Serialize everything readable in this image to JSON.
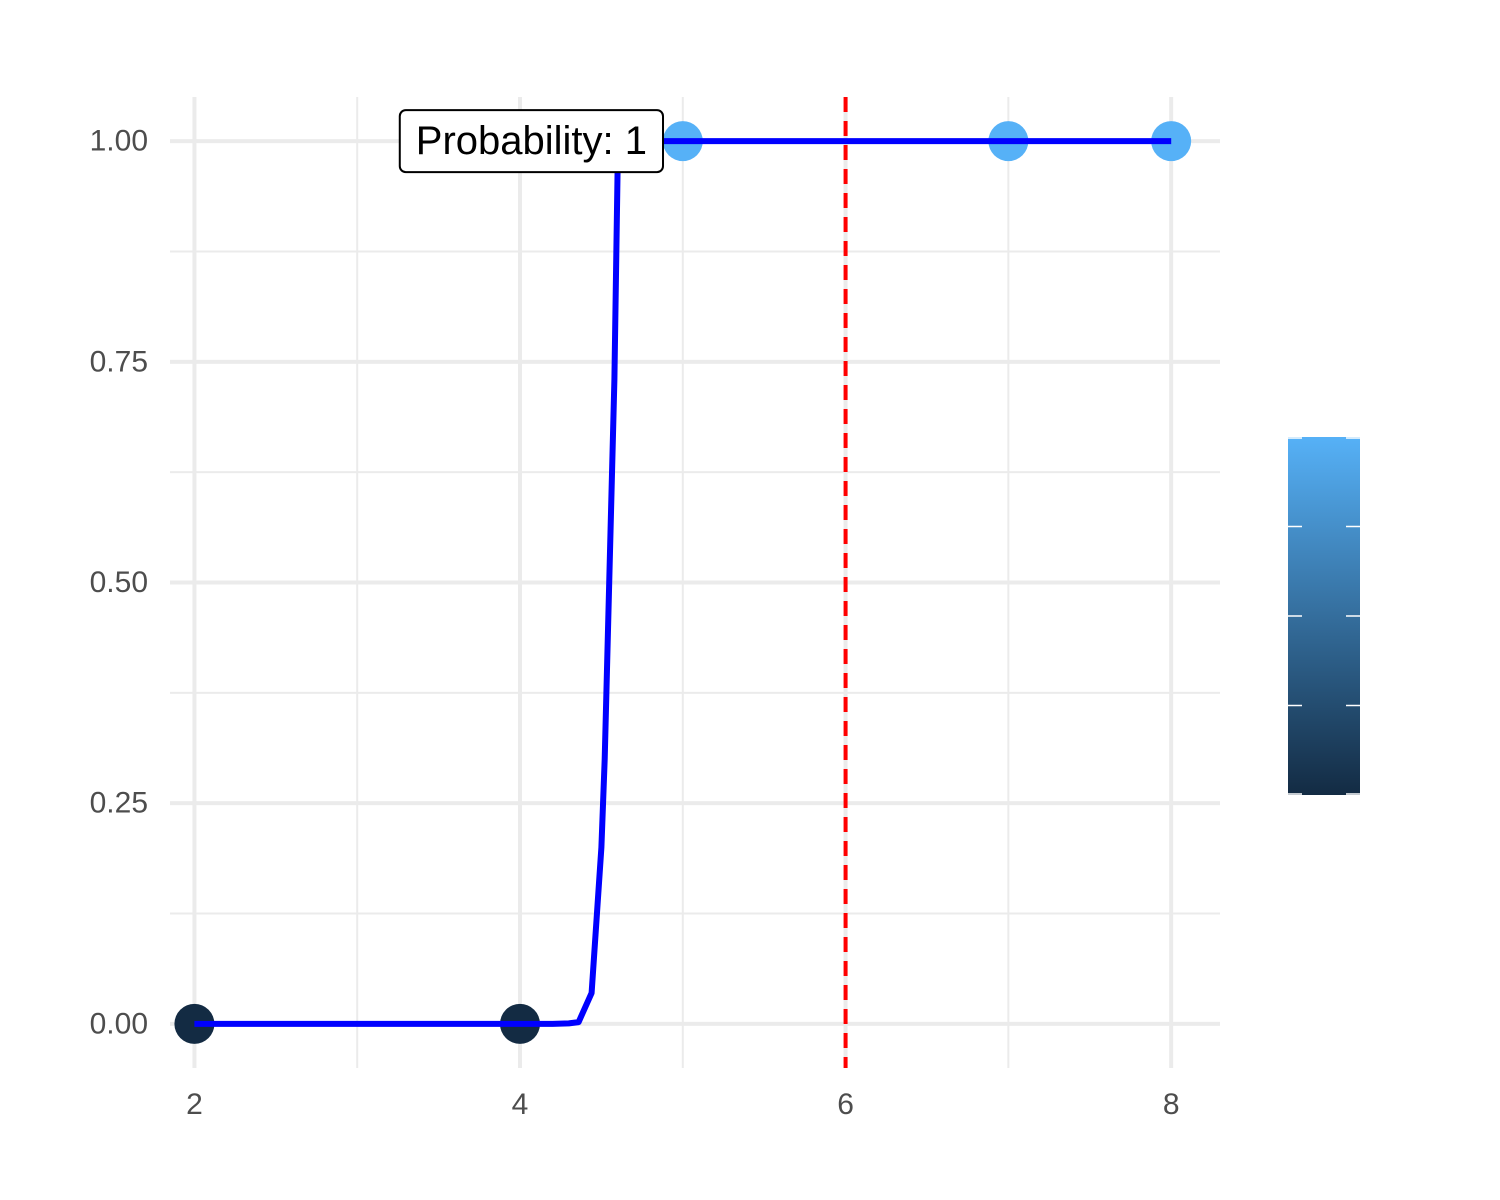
{
  "chart_data": {
    "type": "line",
    "title": "",
    "xlabel": "",
    "ylabel": "",
    "xlim": [
      1.85,
      8.3
    ],
    "ylim": [
      -0.05,
      1.05
    ],
    "x_ticks": [
      2,
      4,
      6,
      8
    ],
    "x_minor_ticks": [
      3,
      5,
      7
    ],
    "y_ticks": [
      0,
      0.25,
      0.5,
      0.75,
      1.0
    ],
    "y_tick_labels": [
      "0.00",
      "0.25",
      "0.50",
      "0.75",
      "1.00"
    ],
    "y_minor_ticks": [
      0.125,
      0.375,
      0.625,
      0.875
    ],
    "grid": true,
    "curve": {
      "color": "#0000ff",
      "x": [
        2,
        2.5,
        3,
        3.5,
        4,
        4.2,
        4.3,
        4.36,
        4.44,
        4.5,
        4.52,
        4.58,
        4.6,
        4.65,
        4.7,
        4.8,
        5,
        5.5,
        6,
        6.5,
        7,
        7.5,
        8
      ],
      "y": [
        0,
        0,
        0,
        0,
        0,
        0,
        0.0005,
        0.002,
        0.035,
        0.2,
        0.3,
        0.73,
        0.975,
        0.99,
        1,
        1,
        1,
        1,
        1,
        1,
        1,
        1,
        1
      ]
    },
    "points": {
      "x": [
        2,
        4,
        5,
        7,
        8
      ],
      "y": [
        0,
        0,
        1,
        1,
        1
      ],
      "colors": [
        "#132b43",
        "#132b43",
        "#56b1f7",
        "#56b1f7",
        "#56b1f7"
      ]
    },
    "reference_line": {
      "x": 6,
      "color": "#ff0000",
      "style": "dashed"
    },
    "annotation": {
      "text": "Probability: 1",
      "x": 4.07,
      "y": 1.0
    },
    "legend": {
      "type": "colorbar",
      "placement": "right",
      "color_low": "#132b43",
      "color_high": "#56b1f7",
      "tick_count": 5
    }
  }
}
